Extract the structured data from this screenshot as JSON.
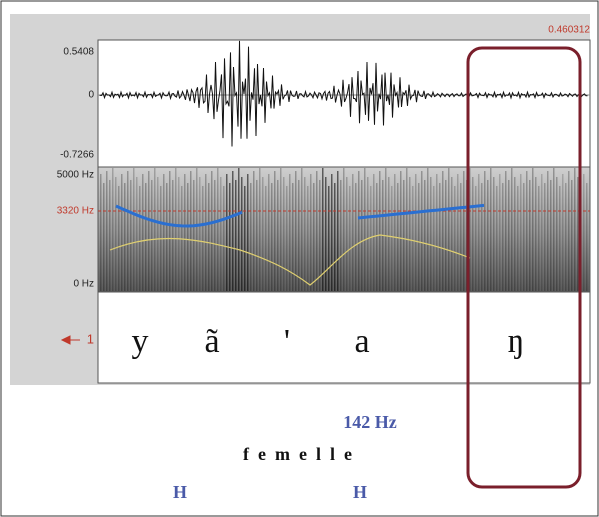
{
  "cursor_time": "0.460312",
  "waveform": {
    "max": "0.5408",
    "zero": "0",
    "min": "-0.7266"
  },
  "spectrogram": {
    "top": "5000 Hz",
    "cursor": "3320 Hz",
    "bottom": "0 Hz"
  },
  "tier": {
    "number": "1",
    "segments": [
      "y",
      "ã",
      "'",
      "a",
      "ŋ"
    ]
  },
  "annotations": {
    "pitch": "142 Hz",
    "gender": "femelle",
    "tones": [
      "H",
      "H"
    ]
  }
}
